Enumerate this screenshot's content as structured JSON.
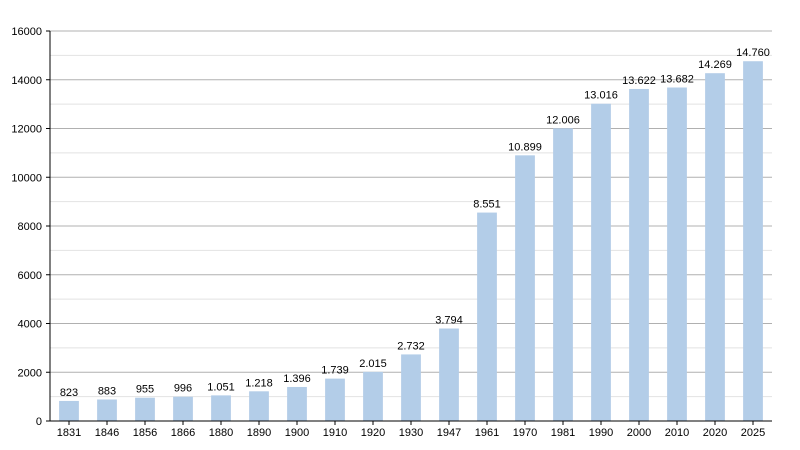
{
  "chart_data": {
    "type": "bar",
    "categories": [
      "1831",
      "1846",
      "1856",
      "1866",
      "1880",
      "1890",
      "1900",
      "1910",
      "1920",
      "1930",
      "1947",
      "1961",
      "1970",
      "1981",
      "1990",
      "2000",
      "2010",
      "2020",
      "2025"
    ],
    "values": [
      823,
      883,
      955,
      996,
      1051,
      1218,
      1396,
      1739,
      2015,
      2732,
      3794,
      8551,
      10899,
      12006,
      13016,
      13622,
      13682,
      14269,
      14760
    ],
    "data_labels": [
      "823",
      "883",
      "955",
      "996",
      "1.051",
      "1.218",
      "1.396",
      "1.739",
      "2.015",
      "2.732",
      "3.794",
      "8.551",
      "10.899",
      "12.006",
      "13.016",
      "13.622",
      "13.682",
      "14.269",
      "14.760"
    ],
    "y_ticks": [
      0,
      2000,
      4000,
      6000,
      8000,
      10000,
      12000,
      14000,
      16000
    ],
    "ylim": [
      0,
      16000
    ],
    "grid": true,
    "legend": "none",
    "colors": {
      "bar": "#b3cde8",
      "grid_major": "#b0b0b0",
      "grid_minor": "#e2e2e2",
      "axis": "#000000"
    }
  }
}
